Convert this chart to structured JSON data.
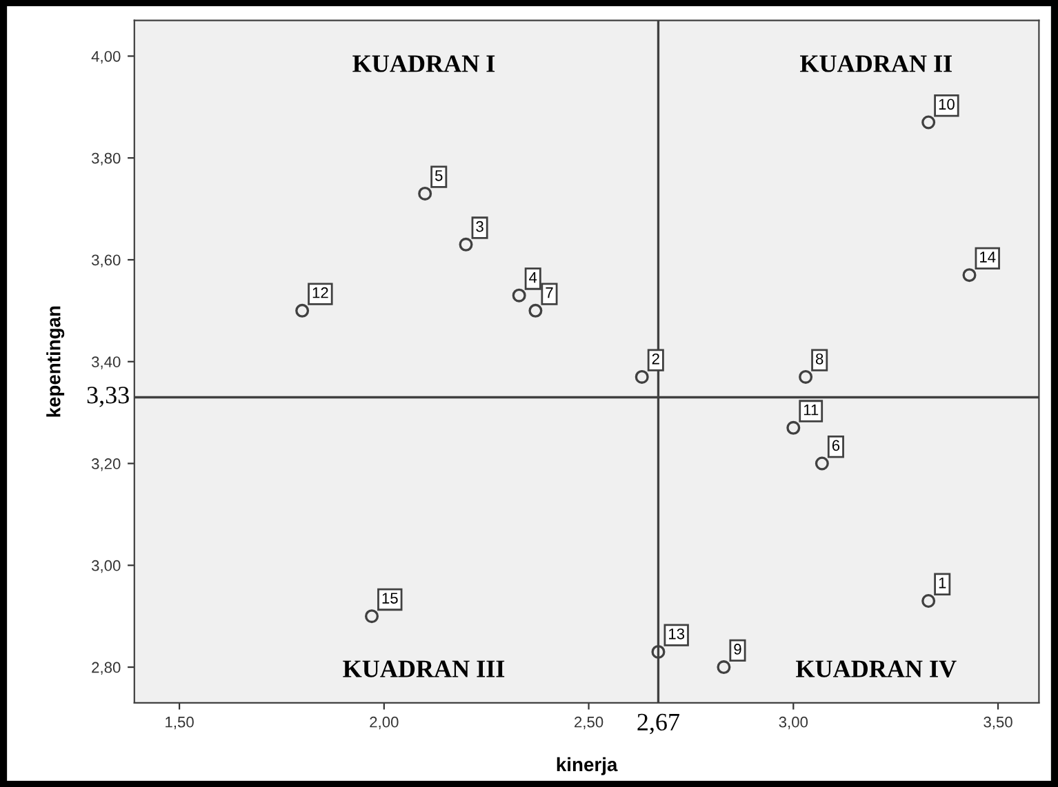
{
  "chart_data": {
    "type": "scatter",
    "xlabel": "kinerja",
    "ylabel": "kepentingan",
    "series": [
      {
        "color": "#404040",
        "x": [
          3.33,
          2.63,
          2.2,
          2.33,
          2.1,
          3.07,
          2.37,
          3.03,
          2.83,
          3.33,
          3.0,
          1.8,
          2.67,
          3.43,
          1.97
        ],
        "values": [
          2.93,
          3.37,
          3.63,
          3.53,
          3.73,
          3.2,
          3.5,
          3.37,
          2.8,
          3.87,
          3.27,
          3.5,
          2.83,
          3.57,
          2.9
        ]
      }
    ],
    "marker": "circle",
    "grid": false,
    "legend": false,
    "xlim": [
      1.39,
      3.6
    ],
    "ylim": [
      2.73,
      4.07
    ],
    "xticks": [
      {
        "value": 1.5,
        "label": "1,50"
      },
      {
        "value": 2.0,
        "label": "2,00"
      },
      {
        "value": 2.5,
        "label": "2,50"
      },
      {
        "value": 3.0,
        "label": "3,00"
      },
      {
        "value": 3.5,
        "label": "3,50"
      }
    ],
    "yticks": [
      {
        "value": 2.8,
        "label": "2,80"
      },
      {
        "value": 3.0,
        "label": "3,00"
      },
      {
        "value": 3.2,
        "label": "3,20"
      },
      {
        "value": 3.4,
        "label": "3,40"
      },
      {
        "value": 3.6,
        "label": "3,60"
      },
      {
        "value": 3.8,
        "label": "3,80"
      },
      {
        "value": 4.0,
        "label": "4,00"
      }
    ],
    "ref_lines": [
      {
        "axis": "x",
        "value": 2.67,
        "label": "2,67",
        "color": "#404040"
      },
      {
        "axis": "y",
        "value": 3.33,
        "label": "3,33",
        "color": "#404040"
      }
    ],
    "annotations": [
      "KUADRAN I",
      "KUADRAN II",
      "KUADRAN III",
      "KUADRAN IV",
      {
        "text": "1",
        "x": 3.33,
        "y": 2.93
      },
      {
        "text": "2",
        "x": 2.63,
        "y": 3.37
      },
      {
        "text": "3",
        "x": 2.2,
        "y": 3.63
      },
      {
        "text": "4",
        "x": 2.33,
        "y": 3.53
      },
      {
        "text": "5",
        "x": 2.1,
        "y": 3.73
      },
      {
        "text": "6",
        "x": 3.07,
        "y": 3.2
      },
      {
        "text": "7",
        "x": 2.37,
        "y": 3.5
      },
      {
        "text": "8",
        "x": 3.03,
        "y": 3.37
      },
      {
        "text": "9",
        "x": 2.83,
        "y": 2.8
      },
      {
        "text": "10",
        "x": 3.33,
        "y": 3.87
      },
      {
        "text": "11",
        "x": 3.0,
        "y": 3.27
      },
      {
        "text": "12",
        "x": 1.8,
        "y": 3.5
      },
      {
        "text": "13",
        "x": 2.67,
        "y": 2.83
      },
      {
        "text": "14",
        "x": 3.43,
        "y": 3.57
      },
      {
        "text": "15",
        "x": 1.97,
        "y": 2.9
      }
    ]
  }
}
